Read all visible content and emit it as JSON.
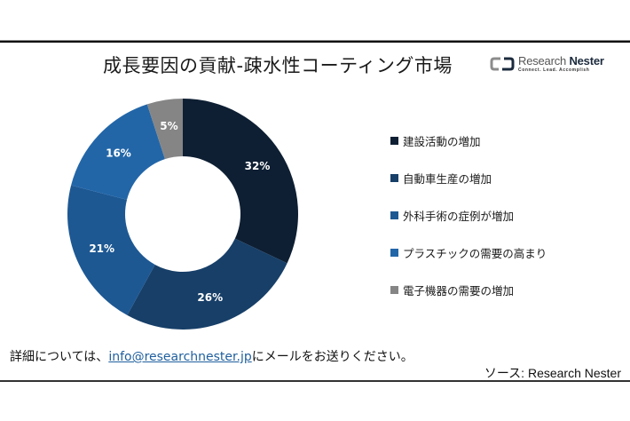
{
  "header": {
    "title": "成長要因の貢献-疎水性コーティング市場",
    "logo": {
      "name_part1": "Research ",
      "name_part2": "Nester",
      "tagline": "Connect. Lead. Accomplish",
      "colors": {
        "left_bracket": "#8c8c8c",
        "right_bracket": "#1b2a3d"
      }
    }
  },
  "chart_data": {
    "type": "pie",
    "subtype": "donut",
    "title": "成長要因の貢献-疎水性コーティング市場",
    "categories": [
      "建設活動の増加",
      "自動車生産の増加",
      "外科手術の症例が増加",
      "プラスチックの需要の高まり",
      "電子機器の需要の増加"
    ],
    "values": [
      32,
      26,
      21,
      16,
      5
    ],
    "labels": [
      "32%",
      "26%",
      "21%",
      "16%",
      "5%"
    ],
    "colors": [
      "#0e1f33",
      "#173f68",
      "#1d5893",
      "#2266a8",
      "#858585"
    ],
    "start_angle": "12 o'clock",
    "direction": "clockwise",
    "legend_position": "right",
    "unit": "%"
  },
  "legend": {
    "items": [
      {
        "label": "建設活動の増加",
        "color": "#0e1f33"
      },
      {
        "label": "自動車生産の増加",
        "color": "#173f68"
      },
      {
        "label": "外科手術の症例が増加",
        "color": "#1d5893"
      },
      {
        "label": "プラスチックの需要の高まり",
        "color": "#2266a8"
      },
      {
        "label": "電子機器の需要の増加",
        "color": "#858585"
      }
    ]
  },
  "footer": {
    "contact_prefix": "詳細については、",
    "contact_email": "info@researchnester.jp",
    "contact_suffix": "にメールをお送りください。",
    "source": "ソース: Research Nester"
  }
}
